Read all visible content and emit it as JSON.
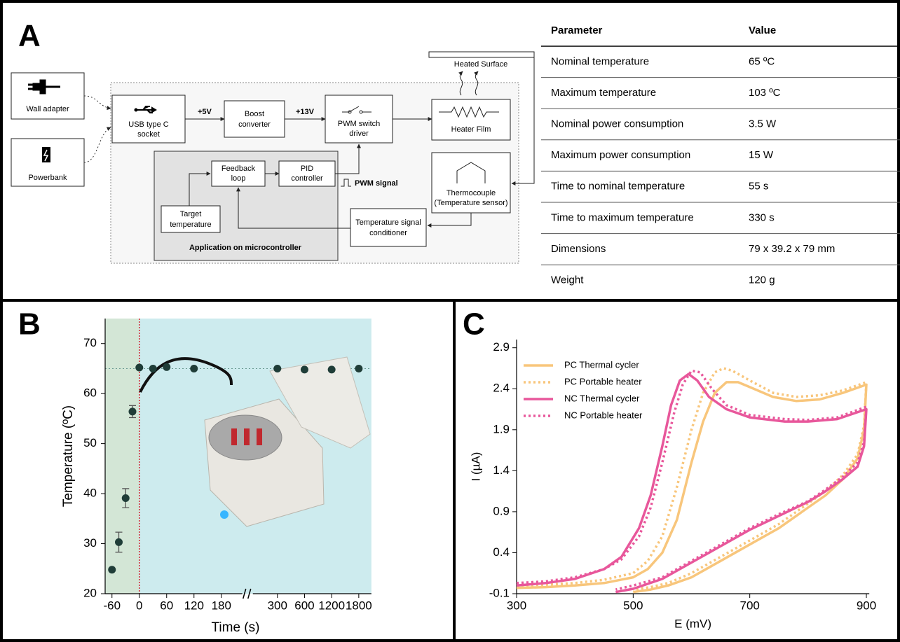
{
  "panel_labels": [
    "A",
    "B",
    "C"
  ],
  "diagram": {
    "nodes": [
      {
        "label": [
          "Wall adapter"
        ]
      },
      {
        "label": [
          "Powerbank"
        ]
      },
      {
        "label": [
          "USB type C",
          "socket"
        ]
      },
      {
        "label": [
          "Boost",
          "converter"
        ]
      },
      {
        "label": [
          "PWM switch",
          "driver"
        ]
      },
      {
        "label": [
          "Heater Film"
        ]
      },
      {
        "label": [
          "Heated Surface"
        ]
      },
      {
        "label": [
          "Thermocouple",
          "(Temperature sensor)"
        ]
      },
      {
        "label": [
          "Feedback",
          "loop"
        ]
      },
      {
        "label": [
          "PID",
          "controller"
        ]
      },
      {
        "label": [
          "Target",
          "temperature"
        ]
      },
      {
        "label": [
          "Temperature signal",
          "conditioner"
        ]
      },
      {
        "label": [
          "Application on microcontroller"
        ]
      }
    ],
    "edge_labels": [
      "+5V",
      "+13V",
      "PWM signal"
    ]
  },
  "table": {
    "header": [
      "Parameter",
      "Value"
    ],
    "rows": [
      [
        "Nominal temperature",
        "65 ºC"
      ],
      [
        "Maximum temperature",
        "103 ºC"
      ],
      [
        "Nominal power consumption",
        "3.5 W"
      ],
      [
        "Maximum power consumption",
        "15 W"
      ],
      [
        "Time to nominal temperature",
        "55 s"
      ],
      [
        "Time to maximum temperature",
        "330 s"
      ],
      [
        "Dimensions",
        "79 x 39.2 x 79 mm"
      ],
      [
        "Weight",
        "120 g"
      ]
    ]
  },
  "chart_data": [
    {
      "type": "scatter",
      "x_label": "Time (s)",
      "y_label": "Temperature (ºC)",
      "x": [
        -60,
        -45,
        -30,
        -15,
        0,
        30,
        60,
        120,
        300,
        600,
        1200,
        1800
      ],
      "values": [
        24.8,
        30.3,
        39.1,
        56.4,
        65.2,
        65.0,
        65.3,
        65.0,
        65.0,
        64.8,
        64.8,
        65.0
      ],
      "errors": [
        null,
        2.0,
        1.9,
        1.2,
        null,
        null,
        null,
        null,
        null,
        null,
        null,
        null
      ],
      "color": "#1f3d38",
      "xlim": [
        -75,
        1800
      ],
      "xticks": [
        -60,
        0,
        60,
        120,
        180,
        300,
        600,
        1200,
        1800
      ],
      "x_break": [
        180,
        300
      ],
      "ylim": [
        20,
        75
      ],
      "yticks": [
        20,
        30,
        40,
        50,
        60,
        70
      ],
      "reference_lines": {
        "x": 0,
        "y": 65
      },
      "region_colors": [
        "#d3e6d6",
        "#cdebee"
      ]
    },
    {
      "type": "line",
      "x_label": "E (mV)",
      "y_label": "I (µA)",
      "xlim": [
        300,
        905
      ],
      "xticks": [
        300,
        500,
        700,
        900
      ],
      "ylim": [
        -0.1,
        3.0
      ],
      "yticks": [
        -0.1,
        0.4,
        0.9,
        1.4,
        1.9,
        2.4,
        2.9
      ],
      "legend": "upper left",
      "series": [
        {
          "name": "PC Thermal cycler",
          "color": "#f8c67c",
          "style": "solid",
          "x": [
            300,
            350,
            400,
            450,
            500,
            525,
            550,
            575,
            600,
            620,
            640,
            660,
            680,
            700,
            740,
            780,
            820,
            860,
            900,
            896,
            885,
            860,
            830,
            800,
            750,
            700,
            650,
            600,
            560,
            530,
            500
          ],
          "values": [
            -0.03,
            -0.02,
            0.0,
            0.03,
            0.1,
            0.2,
            0.4,
            0.8,
            1.5,
            2.0,
            2.35,
            2.48,
            2.48,
            2.42,
            2.3,
            2.25,
            2.27,
            2.35,
            2.45,
            1.9,
            1.55,
            1.3,
            1.1,
            0.95,
            0.7,
            0.5,
            0.3,
            0.1,
            0.0,
            -0.05,
            -0.08
          ]
        },
        {
          "name": "PC Portable heater",
          "color": "#f8c67c",
          "style": "dotted",
          "x": [
            300,
            350,
            400,
            450,
            500,
            525,
            550,
            575,
            600,
            620,
            640,
            655,
            670,
            700,
            740,
            780,
            820,
            860,
            900,
            896,
            885,
            860,
            830,
            800,
            750,
            700,
            650,
            600,
            560,
            530,
            500
          ],
          "values": [
            0.0,
            0.01,
            0.03,
            0.07,
            0.15,
            0.3,
            0.6,
            1.2,
            1.9,
            2.35,
            2.6,
            2.65,
            2.62,
            2.5,
            2.35,
            2.3,
            2.32,
            2.38,
            2.48,
            1.95,
            1.6,
            1.35,
            1.15,
            1.0,
            0.75,
            0.55,
            0.35,
            0.15,
            0.03,
            -0.02,
            -0.05
          ]
        },
        {
          "name": "NC Thermal cycler",
          "color": "#e8579b",
          "style": "solid",
          "x": [
            300,
            350,
            400,
            450,
            480,
            510,
            530,
            550,
            565,
            580,
            595,
            610,
            630,
            660,
            700,
            760,
            800,
            850,
            900,
            896,
            885,
            860,
            830,
            800,
            750,
            700,
            650,
            600,
            550,
            500,
            470
          ],
          "values": [
            0.0,
            0.03,
            0.08,
            0.2,
            0.35,
            0.7,
            1.1,
            1.7,
            2.2,
            2.5,
            2.58,
            2.5,
            2.3,
            2.15,
            2.05,
            2.0,
            2.0,
            2.03,
            2.15,
            1.7,
            1.45,
            1.3,
            1.15,
            1.02,
            0.85,
            0.68,
            0.48,
            0.28,
            0.08,
            -0.04,
            -0.08
          ]
        },
        {
          "name": "NC Portable heater",
          "color": "#e8579b",
          "style": "dotted",
          "x": [
            300,
            350,
            400,
            450,
            480,
            510,
            530,
            550,
            570,
            585,
            600,
            615,
            635,
            660,
            700,
            760,
            800,
            850,
            900,
            896,
            885,
            860,
            830,
            800,
            750,
            700,
            650,
            600,
            550,
            500,
            470
          ],
          "values": [
            0.03,
            0.05,
            0.1,
            0.2,
            0.32,
            0.6,
            0.95,
            1.5,
            2.1,
            2.45,
            2.62,
            2.6,
            2.4,
            2.2,
            2.08,
            2.03,
            2.02,
            2.05,
            2.18,
            1.75,
            1.5,
            1.33,
            1.17,
            1.03,
            0.87,
            0.7,
            0.5,
            0.3,
            0.1,
            0.0,
            -0.05
          ]
        }
      ]
    }
  ]
}
